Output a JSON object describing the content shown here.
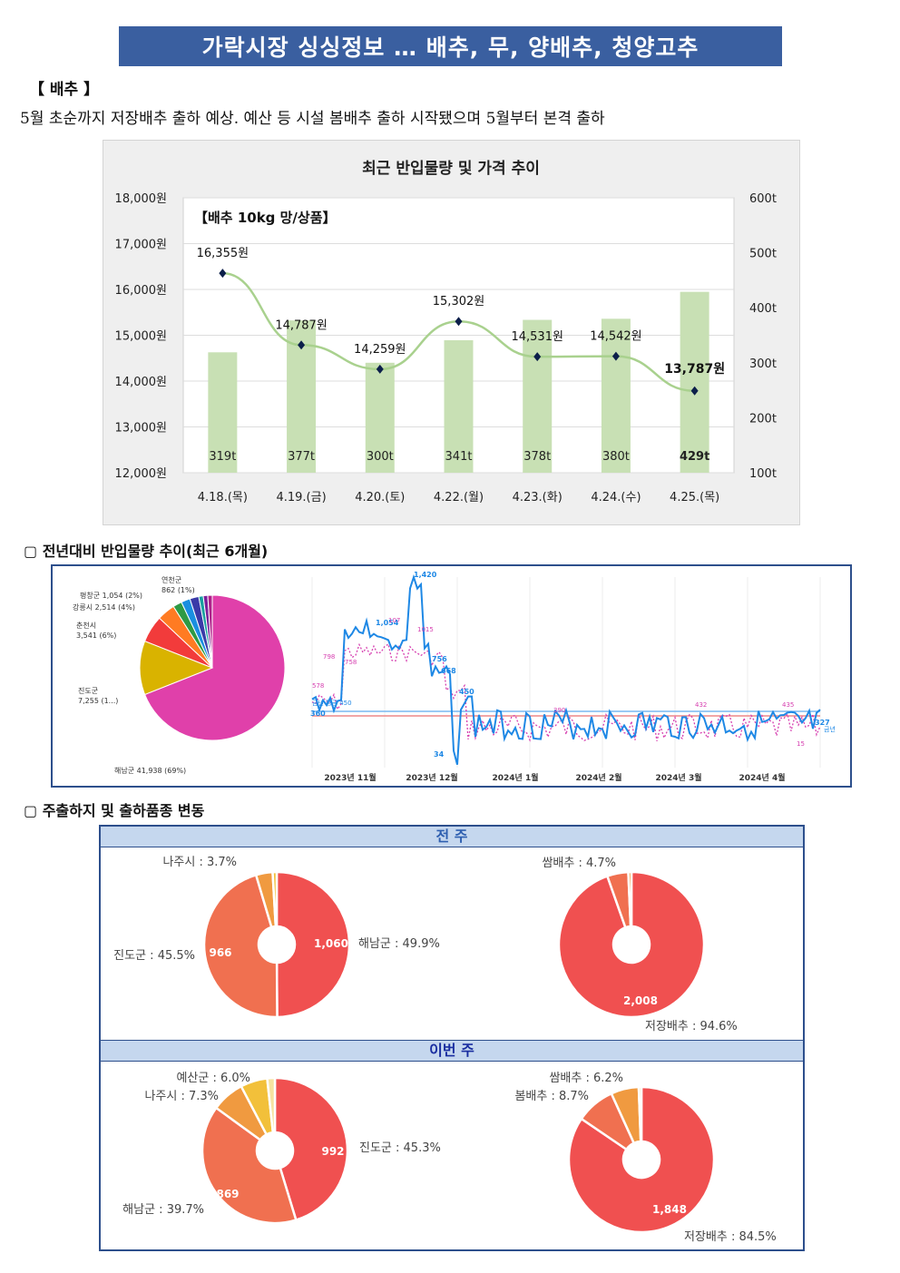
{
  "header": {
    "title": "가락시장 싱싱정보 … 배추, 무, 양배추, 청양고추"
  },
  "item": {
    "tag": "【 배추 】",
    "description": "5월 초순까지 저장배추 출하 예상. 예산 등 시설 봄배추 출하 시작됐으며 5월부터 본격 출하"
  },
  "chart_data": {
    "type": "bar",
    "title": "최근 반입물량 및 가격 추이",
    "subtitle": "【배추 10kg 망/상품】",
    "categories": [
      "4.18.(목)",
      "4.19.(금)",
      "4.20.(토)",
      "4.22.(월)",
      "4.23.(화)",
      "4.24.(수)",
      "4.25.(목)"
    ],
    "series": [
      {
        "type": "bar",
        "axis": "right",
        "values": [
          319,
          377,
          300,
          341,
          378,
          380,
          429
        ],
        "labels": [
          "319t",
          "377t",
          "300t",
          "341t",
          "378t",
          "380t",
          "429t"
        ],
        "color": "#c8e0b4"
      },
      {
        "type": "line",
        "axis": "left",
        "values": [
          16355,
          14787,
          14259,
          15302,
          14531,
          14542,
          13787
        ],
        "labels": [
          "16,355원",
          "14,787원",
          "14,259원",
          "15,302원",
          "14,531원",
          "14,542원",
          "13,787원"
        ],
        "color": "#a9d18e"
      }
    ],
    "ylim_left": [
      12000,
      18000
    ],
    "ylim_right": [
      100,
      600
    ],
    "left_ticks": [
      "12,000원",
      "13,000원",
      "14,000원",
      "15,000원",
      "16,000원",
      "17,000원",
      "18,000원"
    ],
    "right_ticks": [
      "100t",
      "200t",
      "300t",
      "400t",
      "500t",
      "600t"
    ],
    "grid": true
  },
  "trend": {
    "heading": "▢  전년대비 반입물량 추이(최근 6개월)",
    "pie": {
      "slices": [
        {
          "label": "해남군 41,938 (69%)",
          "pct": 69,
          "color": "#e040aa"
        },
        {
          "label": "진도군\n7,255 (1...)",
          "pct": 12,
          "color": "#d9b300"
        },
        {
          "label": "춘천시\n3,541 (6%)",
          "pct": 6,
          "color": "#f23b3b"
        },
        {
          "label": "강릉시 2,514 (4%)",
          "pct": 4,
          "color": "#ff7b22"
        },
        {
          "label": "평창군 1,054 (2%)",
          "pct": 2,
          "color": "#2e9a44"
        },
        {
          "label": "",
          "pct": 2,
          "color": "#1a8fe0"
        },
        {
          "label": "",
          "pct": 2,
          "color": "#3a3aa8"
        },
        {
          "label": "",
          "pct": 1,
          "color": "#19a0a0"
        },
        {
          "label": "연천군\n862 (1%)",
          "pct": 1,
          "color": "#7a1f9a"
        },
        {
          "label": "",
          "pct": 1,
          "color": "#b0208a"
        }
      ]
    },
    "line": {
      "months": [
        "2023년 11월",
        "2023년 12월",
        "2024년 1월",
        "2024년 2월",
        "2024년 3월",
        "2024년 4월"
      ],
      "current_labels": [
        "1,420",
        "1,054",
        "756",
        "668",
        "450",
        "360",
        "34",
        "327"
      ],
      "prev_labels": [
        "798",
        "758",
        "107",
        "1015",
        "578",
        "390",
        "432",
        "435",
        "15"
      ],
      "legend_this": "금년",
      "legend_avg": "금년 평균 450",
      "current_color": "#1e88e5",
      "prev_color": "#d63fb0"
    }
  },
  "shipping": {
    "heading": "▢  주출하지 및 출하품종 변동",
    "last_week": {
      "band": "전 주",
      "region": {
        "segments": [
          {
            "label": "해남군 : 49.9%",
            "value": 1060,
            "value_label": "1,060",
            "pct": 49.9,
            "color": "#f05050"
          },
          {
            "label": "진도군 : 45.5%",
            "value": 966,
            "value_label": "966",
            "pct": 45.5,
            "color": "#f07050"
          },
          {
            "label": "나주시 : 3.7%",
            "value": null,
            "value_label": "",
            "pct": 3.7,
            "color": "#f09a40"
          },
          {
            "label": "",
            "value": null,
            "value_label": "",
            "pct": 0.9,
            "color": "#f2c03a"
          }
        ]
      },
      "variety": {
        "segments": [
          {
            "label": "저장배추 : 94.6%",
            "value": 2008,
            "value_label": "2,008",
            "pct": 94.6,
            "color": "#f05050"
          },
          {
            "label": "쌈배추 : 4.7%",
            "value": null,
            "value_label": "",
            "pct": 4.7,
            "color": "#f07050"
          },
          {
            "label": "",
            "value": null,
            "value_label": "",
            "pct": 0.7,
            "color": "#f09a40"
          }
        ]
      }
    },
    "this_week": {
      "band": "이번 주",
      "region": {
        "segments": [
          {
            "label": "진도군 : 45.3%",
            "value": 992,
            "value_label": "992",
            "pct": 45.3,
            "color": "#f05050"
          },
          {
            "label": "해남군 : 39.7%",
            "value": 869,
            "value_label": "869",
            "pct": 39.7,
            "color": "#f07050"
          },
          {
            "label": "나주시 : 7.3%",
            "value": null,
            "value_label": "",
            "pct": 7.3,
            "color": "#f09a40"
          },
          {
            "label": "예산군 : 6.0%",
            "value": null,
            "value_label": "",
            "pct": 6.0,
            "color": "#f2c03a"
          },
          {
            "label": "",
            "value": null,
            "value_label": "",
            "pct": 1.7,
            "color": "#f6e2a0"
          }
        ]
      },
      "variety": {
        "segments": [
          {
            "label": "저장배추 : 84.5%",
            "value": 1848,
            "value_label": "1,848",
            "pct": 84.5,
            "color": "#f05050"
          },
          {
            "label": "봄배추 : 8.7%",
            "value": null,
            "value_label": "",
            "pct": 8.7,
            "color": "#f07050"
          },
          {
            "label": "쌈배추 : 6.2%",
            "value": null,
            "value_label": "",
            "pct": 6.2,
            "color": "#f09a40"
          },
          {
            "label": "",
            "value": null,
            "value_label": "",
            "pct": 0.6,
            "color": "#f6e2a0"
          }
        ]
      }
    }
  }
}
